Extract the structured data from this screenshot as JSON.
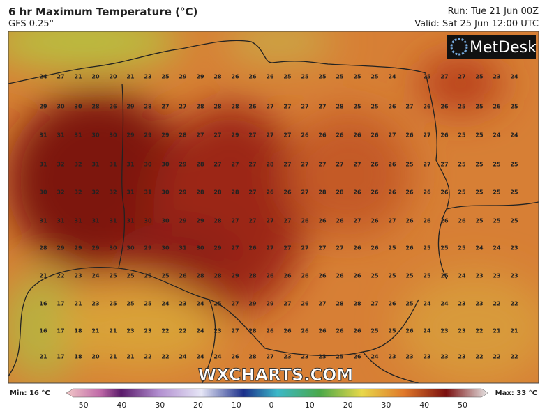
{
  "header": {
    "title": "6 hr Maximum Temperature (°C)",
    "model": "GFS 0.25°",
    "run": "Run: Tue 21 Jun 00Z",
    "valid": "Valid: Sat 25 Jun 12:00 UTC"
  },
  "logo": "MetDesk",
  "watermark": "WXCHARTS.COM",
  "legend": {
    "min": "Min: 16 °C",
    "max": "Max: 33 °C",
    "ticks": [
      "−50",
      "−40",
      "−30",
      "−20",
      "−10",
      "0",
      "10",
      "20",
      "30",
      "40",
      "50"
    ]
  },
  "grid": {
    "rows": [
      [
        24,
        27,
        21,
        20,
        20,
        21,
        23,
        25,
        29,
        29,
        28,
        26,
        26,
        26,
        25,
        25,
        25,
        25,
        25,
        25,
        24,
        null,
        25,
        27,
        27,
        25,
        23,
        24
      ],
      [
        29,
        30,
        30,
        28,
        26,
        29,
        28,
        27,
        27,
        28,
        28,
        28,
        26,
        27,
        27,
        27,
        27,
        28,
        25,
        25,
        26,
        27,
        26,
        26,
        25,
        25,
        26,
        25
      ],
      [
        31,
        31,
        31,
        30,
        30,
        29,
        29,
        29,
        28,
        27,
        27,
        29,
        27,
        27,
        27,
        26,
        26,
        26,
        26,
        26,
        27,
        26,
        27,
        26,
        25,
        25,
        24,
        24
      ],
      [
        31,
        32,
        32,
        31,
        31,
        31,
        30,
        30,
        29,
        28,
        27,
        27,
        27,
        28,
        27,
        27,
        27,
        27,
        27,
        26,
        26,
        25,
        27,
        27,
        25,
        25,
        25,
        25
      ],
      [
        30,
        32,
        32,
        32,
        32,
        31,
        31,
        30,
        29,
        28,
        28,
        28,
        27,
        26,
        26,
        27,
        28,
        28,
        26,
        26,
        26,
        26,
        26,
        26,
        25,
        25,
        25,
        25
      ],
      [
        31,
        31,
        31,
        31,
        31,
        31,
        30,
        30,
        29,
        29,
        28,
        27,
        27,
        27,
        27,
        26,
        26,
        26,
        27,
        26,
        27,
        26,
        26,
        26,
        26,
        25,
        25,
        25
      ],
      [
        28,
        29,
        29,
        29,
        30,
        30,
        29,
        30,
        31,
        30,
        29,
        27,
        26,
        27,
        27,
        27,
        27,
        27,
        26,
        26,
        25,
        26,
        25,
        25,
        25,
        24,
        24,
        23
      ],
      [
        21,
        22,
        23,
        24,
        25,
        25,
        25,
        25,
        26,
        28,
        28,
        29,
        28,
        26,
        26,
        26,
        26,
        26,
        26,
        25,
        25,
        25,
        25,
        25,
        24,
        23,
        23,
        23
      ],
      [
        16,
        17,
        21,
        23,
        25,
        25,
        25,
        24,
        23,
        24,
        25,
        27,
        29,
        29,
        27,
        26,
        27,
        28,
        28,
        27,
        26,
        25,
        24,
        24,
        23,
        23,
        22,
        22
      ],
      [
        16,
        17,
        18,
        21,
        21,
        23,
        23,
        22,
        22,
        24,
        23,
        27,
        28,
        26,
        26,
        26,
        26,
        26,
        26,
        25,
        25,
        26,
        24,
        23,
        23,
        22,
        21,
        21
      ],
      [
        21,
        17,
        18,
        20,
        21,
        21,
        22,
        22,
        24,
        24,
        24,
        26,
        28,
        27,
        23,
        23,
        23,
        25,
        26,
        24,
        23,
        23,
        23,
        23,
        23,
        22,
        22,
        22
      ]
    ]
  }
}
